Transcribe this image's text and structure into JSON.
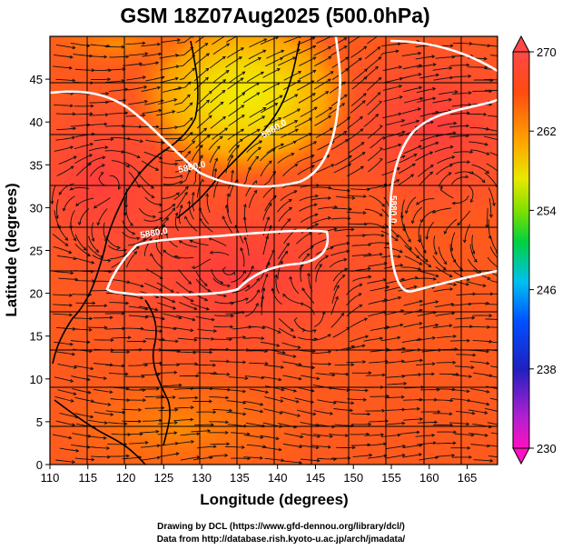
{
  "chart_data": {
    "type": "heatmap",
    "title": "GSM 18Z07Aug2025 (500.0hPa)",
    "xlabel": "Longitude (degrees)",
    "ylabel": "Latitude (degrees)",
    "xlim": [
      110,
      169
    ],
    "ylim": [
      0,
      50
    ],
    "xticks": [
      110,
      115,
      120,
      125,
      130,
      135,
      140,
      145,
      150,
      155,
      160,
      165
    ],
    "yticks": [
      0,
      5,
      10,
      15,
      20,
      25,
      30,
      35,
      40,
      45
    ],
    "colorbar": {
      "min": 230,
      "max": 270,
      "ticks": [
        230,
        238,
        246,
        254,
        262,
        270
      ],
      "colors": [
        "#ff10c0",
        "#a020c8",
        "#2020c0",
        "#0050ff",
        "#00c0f0",
        "#00d040",
        "#a0e000",
        "#f0e000",
        "#ffa000",
        "#ff4000",
        "#ff4848"
      ]
    },
    "contours": [
      {
        "value": "5880.0",
        "label": "5880.0"
      },
      {
        "value": "5880.0",
        "label": "5880.0"
      },
      {
        "value": "5880.0",
        "label": "5880.0"
      },
      {
        "value": "5880.0",
        "label": "5880.0"
      }
    ]
  },
  "credits": {
    "line1": "Drawing by DCL (https://www.gfd-dennou.org/library/dcl/)",
    "line2": "Data from http://database.rish.kyoto-u.ac.jp/arch/jmadata/"
  }
}
